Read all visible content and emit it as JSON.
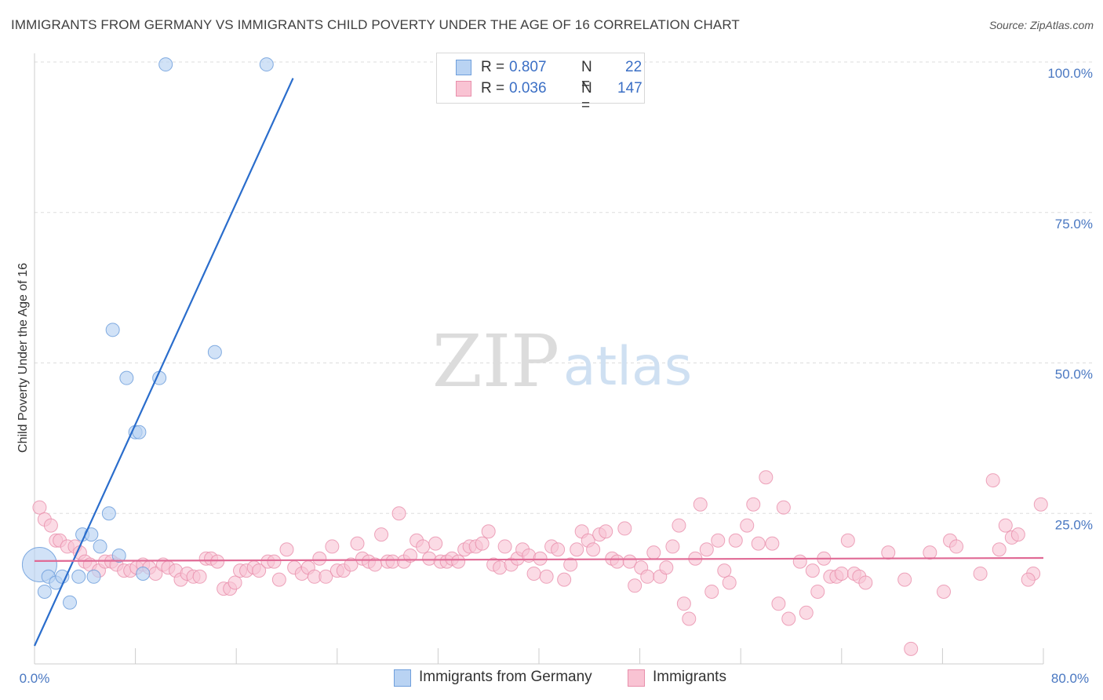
{
  "header": {
    "title": "IMMIGRANTS FROM GERMANY VS IMMIGRANTS CHILD POVERTY UNDER THE AGE OF 16 CORRELATION CHART",
    "source": "Source: ZipAtlas.com"
  },
  "watermark": {
    "zip": "ZIP",
    "atlas": "atlas"
  },
  "legend": {
    "r_label": "R =",
    "n_label": "N =",
    "series": [
      {
        "name": "Immigrants from Germany",
        "r": "0.807",
        "n": "22",
        "fill": "#b9d3f3",
        "stroke": "#6f9fdc"
      },
      {
        "name": "Immigrants",
        "r": "0.036",
        "n": "147",
        "fill": "#f9c3d3",
        "stroke": "#e88fab"
      }
    ]
  },
  "colors": {
    "blue_point": "#b9d3f3",
    "blue_edge": "#6f9fdc",
    "blue_line": "#2a6dcc",
    "pink_point": "#f9c3d3",
    "pink_edge": "#e88fab",
    "pink_line": "#e06a95",
    "axis_text": "#4a78c2",
    "grid": "#dddddd"
  },
  "chart_data": {
    "type": "scatter",
    "title": "IMMIGRANTS FROM GERMANY VS IMMIGRANTS CHILD POVERTY UNDER THE AGE OF 16 CORRELATION CHART",
    "xlabel": "",
    "ylabel": "Child Poverty Under the Age of 16",
    "xlim": [
      0,
      80
    ],
    "ylim": [
      0,
      100
    ],
    "x_tick_labels": [
      "0.0%",
      "80.0%"
    ],
    "y_ticks": [
      {
        "value": 25,
        "label": "25.0%"
      },
      {
        "value": 50,
        "label": "50.0%"
      },
      {
        "value": 75,
        "label": "75.0%"
      },
      {
        "value": 100,
        "label": "100.0%"
      }
    ],
    "series": [
      {
        "name": "Immigrants from Germany",
        "r": 0.807,
        "n": 22,
        "trend": {
          "x": [
            0.0,
            20.5
          ],
          "y": [
            3.0,
            97.3
          ]
        },
        "points": [
          {
            "x": 0.4,
            "y": 16.5,
            "big": true
          },
          {
            "x": 0.8,
            "y": 12.0
          },
          {
            "x": 1.1,
            "y": 14.5
          },
          {
            "x": 1.7,
            "y": 13.5
          },
          {
            "x": 2.2,
            "y": 14.5
          },
          {
            "x": 2.8,
            "y": 10.2
          },
          {
            "x": 3.5,
            "y": 14.5
          },
          {
            "x": 3.8,
            "y": 21.5
          },
          {
            "x": 4.5,
            "y": 21.5
          },
          {
            "x": 4.7,
            "y": 14.5
          },
          {
            "x": 5.2,
            "y": 19.5
          },
          {
            "x": 5.9,
            "y": 25.0
          },
          {
            "x": 6.2,
            "y": 55.5
          },
          {
            "x": 6.7,
            "y": 18.0
          },
          {
            "x": 7.3,
            "y": 47.5
          },
          {
            "x": 8.0,
            "y": 38.5
          },
          {
            "x": 8.3,
            "y": 38.5
          },
          {
            "x": 8.6,
            "y": 15.0
          },
          {
            "x": 9.9,
            "y": 47.5
          },
          {
            "x": 10.4,
            "y": 99.6
          },
          {
            "x": 14.3,
            "y": 51.8
          },
          {
            "x": 18.4,
            "y": 99.6
          }
        ]
      },
      {
        "name": "Immigrants",
        "r": 0.036,
        "n": 147,
        "trend": {
          "x": [
            0.0,
            80.0
          ],
          "y": [
            17.1,
            17.6
          ]
        },
        "points": [
          {
            "x": 0.4,
            "y": 26.0
          },
          {
            "x": 0.8,
            "y": 24.0
          },
          {
            "x": 1.3,
            "y": 23.0
          },
          {
            "x": 1.7,
            "y": 20.5
          },
          {
            "x": 2.0,
            "y": 20.5
          },
          {
            "x": 2.6,
            "y": 19.5
          },
          {
            "x": 3.2,
            "y": 19.5
          },
          {
            "x": 3.6,
            "y": 18.5
          },
          {
            "x": 4.0,
            "y": 17.0
          },
          {
            "x": 4.4,
            "y": 16.5
          },
          {
            "x": 5.1,
            "y": 15.5
          },
          {
            "x": 5.6,
            "y": 17.0
          },
          {
            "x": 6.1,
            "y": 17.0
          },
          {
            "x": 6.5,
            "y": 16.5
          },
          {
            "x": 7.1,
            "y": 15.5
          },
          {
            "x": 7.6,
            "y": 15.5
          },
          {
            "x": 8.1,
            "y": 16.0
          },
          {
            "x": 8.6,
            "y": 16.5
          },
          {
            "x": 9.1,
            "y": 16.0
          },
          {
            "x": 9.6,
            "y": 15.0
          },
          {
            "x": 10.2,
            "y": 16.5
          },
          {
            "x": 10.6,
            "y": 16.0
          },
          {
            "x": 11.2,
            "y": 15.5
          },
          {
            "x": 11.6,
            "y": 14.0
          },
          {
            "x": 12.1,
            "y": 15.0
          },
          {
            "x": 12.6,
            "y": 14.5
          },
          {
            "x": 13.1,
            "y": 14.5
          },
          {
            "x": 13.6,
            "y": 17.5
          },
          {
            "x": 14.0,
            "y": 17.5
          },
          {
            "x": 14.5,
            "y": 17.0
          },
          {
            "x": 15.0,
            "y": 12.5
          },
          {
            "x": 15.5,
            "y": 12.5
          },
          {
            "x": 15.9,
            "y": 13.5
          },
          {
            "x": 16.3,
            "y": 15.5
          },
          {
            "x": 16.8,
            "y": 15.5
          },
          {
            "x": 17.4,
            "y": 16.0
          },
          {
            "x": 17.8,
            "y": 15.5
          },
          {
            "x": 18.5,
            "y": 17.0
          },
          {
            "x": 19.0,
            "y": 17.0
          },
          {
            "x": 19.4,
            "y": 14.0
          },
          {
            "x": 20.0,
            "y": 19.0
          },
          {
            "x": 20.6,
            "y": 16.0
          },
          {
            "x": 21.2,
            "y": 15.0
          },
          {
            "x": 21.7,
            "y": 16.0
          },
          {
            "x": 22.2,
            "y": 14.5
          },
          {
            "x": 22.6,
            "y": 17.5
          },
          {
            "x": 23.1,
            "y": 14.5
          },
          {
            "x": 23.6,
            "y": 19.5
          },
          {
            "x": 24.0,
            "y": 15.5
          },
          {
            "x": 24.5,
            "y": 15.5
          },
          {
            "x": 25.1,
            "y": 16.5
          },
          {
            "x": 25.6,
            "y": 20.0
          },
          {
            "x": 26.0,
            "y": 17.5
          },
          {
            "x": 26.5,
            "y": 17.0
          },
          {
            "x": 27.0,
            "y": 16.5
          },
          {
            "x": 27.5,
            "y": 21.5
          },
          {
            "x": 28.0,
            "y": 17.0
          },
          {
            "x": 28.4,
            "y": 17.0
          },
          {
            "x": 28.9,
            "y": 25.0
          },
          {
            "x": 29.3,
            "y": 17.0
          },
          {
            "x": 29.8,
            "y": 18.0
          },
          {
            "x": 30.3,
            "y": 20.5
          },
          {
            "x": 30.8,
            "y": 19.5
          },
          {
            "x": 31.3,
            "y": 17.5
          },
          {
            "x": 31.8,
            "y": 20.0
          },
          {
            "x": 32.2,
            "y": 17.0
          },
          {
            "x": 32.7,
            "y": 17.0
          },
          {
            "x": 33.1,
            "y": 17.5
          },
          {
            "x": 33.6,
            "y": 17.0
          },
          {
            "x": 34.1,
            "y": 19.0
          },
          {
            "x": 34.5,
            "y": 19.5
          },
          {
            "x": 35.0,
            "y": 19.5
          },
          {
            "x": 35.5,
            "y": 20.0
          },
          {
            "x": 36.0,
            "y": 22.0
          },
          {
            "x": 36.4,
            "y": 16.5
          },
          {
            "x": 36.9,
            "y": 16.0
          },
          {
            "x": 37.3,
            "y": 19.5
          },
          {
            "x": 37.8,
            "y": 16.5
          },
          {
            "x": 38.3,
            "y": 17.5
          },
          {
            "x": 38.7,
            "y": 19.0
          },
          {
            "x": 39.2,
            "y": 18.0
          },
          {
            "x": 39.6,
            "y": 15.0
          },
          {
            "x": 40.1,
            "y": 17.5
          },
          {
            "x": 40.6,
            "y": 14.5
          },
          {
            "x": 41.0,
            "y": 19.5
          },
          {
            "x": 41.5,
            "y": 19.0
          },
          {
            "x": 42.0,
            "y": 14.0
          },
          {
            "x": 42.5,
            "y": 16.5
          },
          {
            "x": 43.0,
            "y": 19.0
          },
          {
            "x": 43.4,
            "y": 22.0
          },
          {
            "x": 43.9,
            "y": 20.5
          },
          {
            "x": 44.3,
            "y": 19.0
          },
          {
            "x": 44.8,
            "y": 21.5
          },
          {
            "x": 45.3,
            "y": 22.0
          },
          {
            "x": 45.8,
            "y": 17.5
          },
          {
            "x": 46.2,
            "y": 17.0
          },
          {
            "x": 46.8,
            "y": 22.5
          },
          {
            "x": 47.2,
            "y": 17.0
          },
          {
            "x": 47.6,
            "y": 13.0
          },
          {
            "x": 48.1,
            "y": 16.0
          },
          {
            "x": 48.6,
            "y": 14.5
          },
          {
            "x": 49.1,
            "y": 18.5
          },
          {
            "x": 49.6,
            "y": 14.5
          },
          {
            "x": 50.1,
            "y": 16.0
          },
          {
            "x": 50.6,
            "y": 19.5
          },
          {
            "x": 51.1,
            "y": 23.0
          },
          {
            "x": 51.5,
            "y": 10.0
          },
          {
            "x": 51.9,
            "y": 7.5
          },
          {
            "x": 52.4,
            "y": 17.5
          },
          {
            "x": 52.8,
            "y": 26.5
          },
          {
            "x": 53.3,
            "y": 19.0
          },
          {
            "x": 53.7,
            "y": 12.0
          },
          {
            "x": 54.2,
            "y": 20.5
          },
          {
            "x": 54.7,
            "y": 15.5
          },
          {
            "x": 55.1,
            "y": 13.5
          },
          {
            "x": 55.6,
            "y": 20.5
          },
          {
            "x": 56.5,
            "y": 23.0
          },
          {
            "x": 57.0,
            "y": 26.5
          },
          {
            "x": 57.4,
            "y": 20.0
          },
          {
            "x": 58.0,
            "y": 31.0
          },
          {
            "x": 58.5,
            "y": 20.0
          },
          {
            "x": 59.0,
            "y": 10.0
          },
          {
            "x": 59.4,
            "y": 26.0
          },
          {
            "x": 59.8,
            "y": 7.5
          },
          {
            "x": 60.7,
            "y": 17.0
          },
          {
            "x": 61.2,
            "y": 8.5
          },
          {
            "x": 61.7,
            "y": 15.5
          },
          {
            "x": 62.1,
            "y": 12.0
          },
          {
            "x": 62.6,
            "y": 17.5
          },
          {
            "x": 63.1,
            "y": 14.5
          },
          {
            "x": 63.6,
            "y": 14.5
          },
          {
            "x": 64.0,
            "y": 15.0
          },
          {
            "x": 64.5,
            "y": 20.5
          },
          {
            "x": 65.0,
            "y": 15.0
          },
          {
            "x": 65.4,
            "y": 14.5
          },
          {
            "x": 65.9,
            "y": 13.5
          },
          {
            "x": 67.7,
            "y": 18.5
          },
          {
            "x": 69.5,
            "y": 2.5
          },
          {
            "x": 69.0,
            "y": 14.0
          },
          {
            "x": 71.0,
            "y": 18.5
          },
          {
            "x": 72.1,
            "y": 12.0
          },
          {
            "x": 72.6,
            "y": 20.5
          },
          {
            "x": 73.1,
            "y": 19.5
          },
          {
            "x": 75.0,
            "y": 15.0
          },
          {
            "x": 76.0,
            "y": 30.5
          },
          {
            "x": 76.5,
            "y": 19.0
          },
          {
            "x": 77.0,
            "y": 23.0
          },
          {
            "x": 77.5,
            "y": 21.0
          },
          {
            "x": 78.0,
            "y": 21.5
          },
          {
            "x": 79.2,
            "y": 15.0
          },
          {
            "x": 79.8,
            "y": 26.5
          },
          {
            "x": 78.8,
            "y": 14.0
          }
        ]
      }
    ]
  }
}
